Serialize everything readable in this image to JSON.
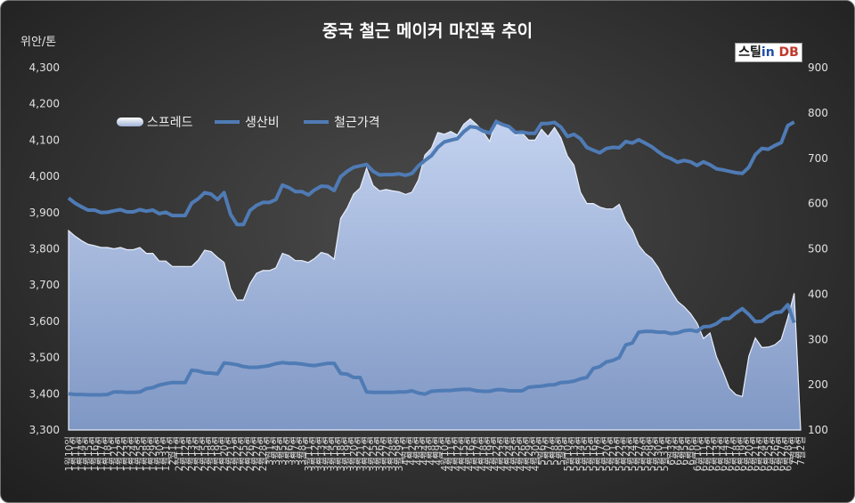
{
  "title": "중국 철근 메이커 마진폭 추이",
  "y_left_unit": "위안/톤",
  "logo": {
    "part1": "스틸",
    "part2": "in",
    "part3": " DB"
  },
  "colors": {
    "background": "#333333",
    "spread_fill_top": "#c3d2ef",
    "spread_fill_bottom": "#7f97c4",
    "production_cost": "#4f7bb5",
    "rebar_price": "#4f7bb5"
  },
  "chart_data": {
    "type": "line",
    "title": "중국 철근 메이커 마진폭 추이",
    "ylabel": "위안/톤",
    "ylim": [
      3300,
      4300
    ],
    "y_ticks": [
      "3,300",
      "3,400",
      "3,500",
      "3,600",
      "3,700",
      "3,800",
      "3,900",
      "4,000",
      "4,100",
      "4,200",
      "4,300"
    ],
    "y2lim": [
      100,
      900
    ],
    "y2_ticks": [
      "100",
      "200",
      "300",
      "400",
      "500",
      "600",
      "700",
      "800",
      "900"
    ],
    "legend_position": "top-left",
    "grid": false,
    "x_tick_labels": [
      "1월10일",
      "1월11일",
      "1월14일",
      "1월15일",
      "1월16일",
      "1월17일",
      "1월18일",
      "1월21일",
      "1월22일",
      "1월23일",
      "1월24일",
      "1월25일",
      "1월28일",
      "1월29일",
      "1월30일",
      "1월31일",
      "2월1일",
      "2월11일",
      "2월12일",
      "2월13일",
      "2월14일",
      "2월15일",
      "2월18일",
      "2월19일",
      "2월20일",
      "2월21일",
      "2월22일",
      "2월25일",
      "2월26일",
      "2월27일",
      "2월28일",
      "3월1일",
      "3월4일",
      "3월5일",
      "3월6일",
      "3월7일",
      "3월8일",
      "3월11일",
      "3월12일",
      "3월13일",
      "3월14일",
      "3월15일",
      "3월18일",
      "3월19일",
      "3월20일",
      "3월21일",
      "3월22일",
      "3월25일",
      "3월26일",
      "3월27일",
      "3월28일",
      "3월29일",
      "4월1일",
      "4월2일",
      "4월3일",
      "4월4일",
      "4월8일",
      "4월9일",
      "4월10일",
      "4월11일",
      "4월12일",
      "4월15일",
      "4월16일",
      "4월17일",
      "4월18일",
      "4월19일",
      "4월22일",
      "4월23일",
      "4월24일",
      "4월25일",
      "4월26일",
      "4월29일",
      "4월30일",
      "5월6일",
      "5월7일",
      "5월8일",
      "5월9일",
      "5월10일",
      "5월13일",
      "5월14일",
      "5월15일",
      "5월16일",
      "5월17일",
      "5월20일",
      "5월21일",
      "5월22일",
      "5월23일",
      "5월24일",
      "5월27일",
      "5월28일",
      "5월29일",
      "5월30일",
      "5월31일",
      "6월3일",
      "6월4일",
      "6월5일",
      "6월6일",
      "6월10일",
      "6월11일",
      "6월12일",
      "6월13일",
      "6월14일",
      "6월17일",
      "6월18일",
      "6월19일",
      "6월20일",
      "6월21일",
      "6월24일",
      "6월25일",
      "6월26일",
      "6월27일",
      "6월28일",
      "7월1일",
      "7월2일"
    ],
    "series": [
      {
        "name": "스프레드",
        "axis": "right",
        "type": "area",
        "values": [
          540,
          528,
          518,
          510,
          507,
          503,
          503,
          500,
          503,
          498,
          498,
          503,
          490,
          490,
          473,
          473,
          461,
          461,
          461,
          461,
          475,
          497,
          494,
          481,
          470,
          412,
          387,
          387,
          423,
          446,
          452,
          452,
          458,
          490,
          485,
          474,
          474,
          470,
          479,
          492,
          488,
          477,
          567,
          590,
          621,
          634,
          678,
          640,
          628,
          631,
          628,
          626,
          620,
          625,
          652,
          707,
          722,
          757,
          753,
          759,
          751,
          775,
          787,
          774,
          758,
          737,
          784,
          772,
          769,
          751,
          756,
          740,
          740,
          764,
          748,
          768,
          745,
          705,
          685,
          625,
          600,
          600,
          592,
          588,
          588,
          598,
          562,
          542,
          508,
          490,
          479,
          459,
          431,
          407,
          384,
          372,
          357,
          336,
          302,
          314,
          262,
          229,
          192,
          178,
          174,
          263,
          303,
          282,
          283,
          288,
          300,
          347,
          402
        ],
        "_note": "values in right-axis units"
      },
      {
        "name": "생산비",
        "axis": "left",
        "values": [
          3400,
          3398,
          3398,
          3397,
          3397,
          3397,
          3398,
          3405,
          3405,
          3404,
          3404,
          3405,
          3414,
          3417,
          3424,
          3428,
          3431,
          3431,
          3431,
          3465,
          3463,
          3458,
          3457,
          3455,
          3485,
          3483,
          3480,
          3475,
          3473,
          3473,
          3475,
          3478,
          3483,
          3486,
          3484,
          3484,
          3482,
          3479,
          3478,
          3481,
          3484,
          3484,
          3456,
          3454,
          3445,
          3445,
          3405,
          3404,
          3404,
          3404,
          3404,
          3405,
          3405,
          3408,
          3402,
          3399,
          3407,
          3408,
          3409,
          3409,
          3411,
          3412,
          3412,
          3408,
          3407,
          3407,
          3411,
          3411,
          3408,
          3408,
          3408,
          3418,
          3420,
          3421,
          3424,
          3425,
          3431,
          3432,
          3435,
          3441,
          3445,
          3470,
          3475,
          3488,
          3492,
          3500,
          3535,
          3540,
          3570,
          3572,
          3572,
          3570,
          3570,
          3566,
          3568,
          3574,
          3576,
          3572,
          3585,
          3586,
          3593,
          3607,
          3608,
          3623,
          3635,
          3619,
          3599,
          3600,
          3614,
          3624,
          3626,
          3646,
          3596
        ]
      },
      {
        "name": "철근가격",
        "axis": "left",
        "values": [
          3940,
          3926,
          3916,
          3907,
          3907,
          3900,
          3901,
          3905,
          3908,
          3902,
          3902,
          3908,
          3904,
          3907,
          3897,
          3901,
          3892,
          3892,
          3892,
          3926,
          3938,
          3955,
          3951,
          3936,
          3955,
          3895,
          3867,
          3867,
          3906,
          3920,
          3928,
          3928,
          3936,
          3976,
          3969,
          3958,
          3958,
          3949,
          3963,
          3973,
          3972,
          3961,
          3999,
          4014,
          4025,
          4029,
          4033,
          4014,
          4004,
          4005,
          4005,
          4007,
          4003,
          4008,
          4029,
          4044,
          4057,
          4080,
          4095,
          4100,
          4104,
          4123,
          4137,
          4135,
          4125,
          4119,
          4151,
          4143,
          4137,
          4121,
          4122,
          4119,
          4119,
          4146,
          4146,
          4149,
          4136,
          4110,
          4116,
          4104,
          4080,
          4072,
          4065,
          4077,
          4080,
          4079,
          4096,
          4092,
          4101,
          4092,
          4082,
          4068,
          4056,
          4049,
          4039,
          4044,
          4040,
          4030,
          4040,
          4032,
          4021,
          4018,
          4014,
          4010,
          4008,
          4025,
          4060,
          4077,
          4075,
          4085,
          4093,
          4140,
          4150
        ]
      }
    ]
  }
}
